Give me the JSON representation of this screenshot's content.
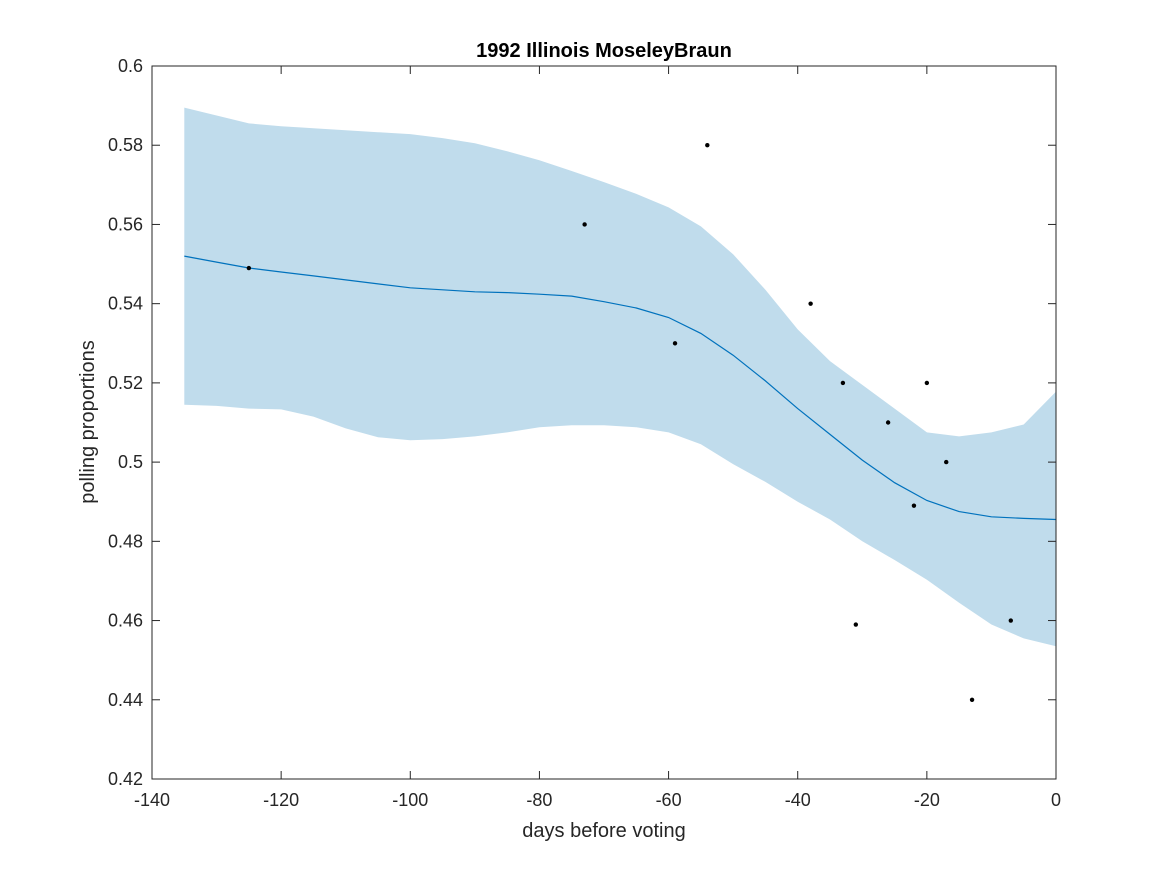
{
  "chart_data": {
    "type": "line",
    "title": "1992 Illinois MoseleyBraun",
    "xlabel": "days before voting",
    "ylabel": "polling proportions",
    "xlim": [
      -140,
      0
    ],
    "ylim": [
      0.42,
      0.6
    ],
    "xticks": [
      -140,
      -120,
      -100,
      -80,
      -60,
      -40,
      -20,
      0
    ],
    "yticks": [
      0.42,
      0.44,
      0.46,
      0.48,
      0.5,
      0.52,
      0.54,
      0.56,
      0.58,
      0.6
    ],
    "xtick_labels": [
      "-140",
      "-120",
      "-100",
      "-80",
      "-60",
      "-40",
      "-20",
      "0"
    ],
    "ytick_labels": [
      "0.42",
      "0.44",
      "0.46",
      "0.48",
      "0.5",
      "0.52",
      "0.54",
      "0.56",
      "0.58",
      "0.6"
    ],
    "grid": false,
    "colors": {
      "band": "#c0dcec",
      "line": "#0072bd",
      "points": "#000000",
      "axes": "#262626"
    },
    "band": {
      "x": [
        -135,
        -130,
        -125,
        -120,
        -115,
        -110,
        -105,
        -100,
        -95,
        -90,
        -85,
        -80,
        -75,
        -70,
        -65,
        -60,
        -55,
        -50,
        -45,
        -40,
        -35,
        -30,
        -25,
        -20,
        -15,
        -10,
        -5,
        0
      ],
      "upper": [
        0.5895,
        0.5875,
        0.5855,
        0.5848,
        0.5843,
        0.5838,
        0.5833,
        0.5828,
        0.5818,
        0.5805,
        0.5785,
        0.5762,
        0.5735,
        0.5707,
        0.5677,
        0.5643,
        0.5595,
        0.5525,
        0.5435,
        0.5335,
        0.5255,
        0.5195,
        0.5135,
        0.5075,
        0.5065,
        0.5075,
        0.5095,
        0.5178
      ],
      "lower": [
        0.5145,
        0.5142,
        0.5135,
        0.5133,
        0.5115,
        0.5085,
        0.5063,
        0.5055,
        0.5058,
        0.5065,
        0.5075,
        0.5088,
        0.5093,
        0.5093,
        0.5088,
        0.5075,
        0.5045,
        0.4995,
        0.495,
        0.49,
        0.4855,
        0.48,
        0.4753,
        0.4703,
        0.4645,
        0.459,
        0.4555,
        0.4535
      ]
    },
    "series": [
      {
        "x": [
          -135,
          -130,
          -125,
          -120,
          -115,
          -110,
          -105,
          -100,
          -95,
          -90,
          -85,
          -80,
          -75,
          -70,
          -65,
          -60,
          -55,
          -50,
          -45,
          -40,
          -35,
          -30,
          -25,
          -20,
          -15,
          -10,
          -5,
          0
        ],
        "y": [
          0.552,
          0.5505,
          0.549,
          0.548,
          0.547,
          0.546,
          0.545,
          0.544,
          0.5435,
          0.543,
          0.5428,
          0.5424,
          0.5419,
          0.5405,
          0.5389,
          0.5365,
          0.5325,
          0.527,
          0.5205,
          0.5135,
          0.507,
          0.5005,
          0.4948,
          0.4903,
          0.4875,
          0.4862,
          0.4858,
          0.4855
        ]
      },
      {
        "x": [
          -125,
          -73,
          -59,
          -54,
          -38,
          -33,
          -31,
          -26,
          -22,
          -20,
          -17,
          -13,
          -7
        ],
        "y": [
          0.549,
          0.56,
          0.53,
          0.58,
          0.54,
          0.52,
          0.459,
          0.51,
          0.489,
          0.52,
          0.5,
          0.44,
          0.46
        ]
      }
    ]
  }
}
